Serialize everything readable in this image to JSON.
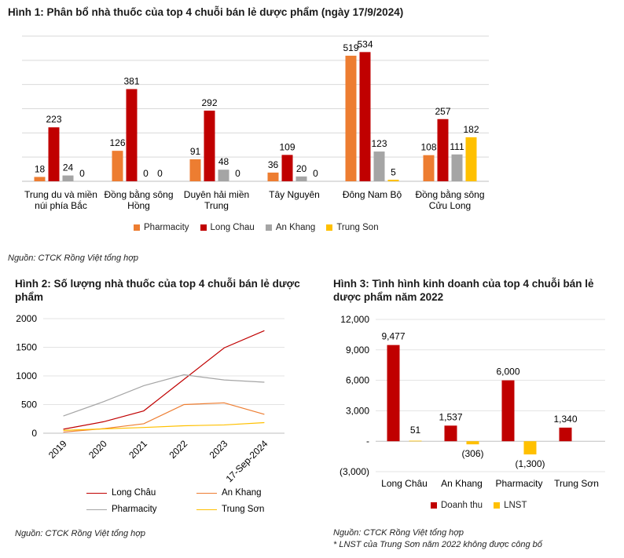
{
  "fig1": {
    "title": "Hình 1: Phân bổ nhà thuốc của top 4 chuỗi bán lẻ dược phẩm (ngày 17/9/2024)",
    "source": "Nguồn: CTCK Rồng Việt tổng hợp"
  },
  "fig2": {
    "title_line1": "Hình 2: Số lượng nhà thuốc của top 4 chuỗi bán lẻ dược",
    "title_line2": "phẩm",
    "source": "Nguồn: CTCK Rồng Việt tổng hợp"
  },
  "fig3": {
    "title_line1": "Hình 3: Tình hình kinh doanh của top 4 chuỗi bán lẻ",
    "title_line2": "dược phẩm năm 2022",
    "source": "Nguồn: CTCK Rồng Việt tổng hợp",
    "note": "* LNST của Trung Sơn năm 2022 không được công bố"
  },
  "chart_data": [
    {
      "type": "bar",
      "title": "Hình 1: Phân bổ nhà thuốc của top 4 chuỗi bán lẻ dược phẩm (ngày 17/9/2024)",
      "categories": [
        [
          "Trung du và miền",
          "núi phía Bắc"
        ],
        [
          "Đồng bằng sông",
          "Hồng"
        ],
        [
          "Duyên hải miền",
          "Trung"
        ],
        [
          "Tây Nguyên"
        ],
        [
          "Đông Nam Bộ"
        ],
        [
          "Đồng bằng sông",
          "Cửu Long"
        ]
      ],
      "series": [
        {
          "name": "Pharmacity",
          "color": "#ED7D31",
          "values": [
            18,
            126,
            91,
            36,
            519,
            108
          ]
        },
        {
          "name": "Long Chau",
          "color": "#C00000",
          "values": [
            223,
            381,
            292,
            109,
            534,
            257
          ]
        },
        {
          "name": "An Khang",
          "color": "#A5A5A5",
          "values": [
            24,
            0,
            48,
            20,
            123,
            111
          ]
        },
        {
          "name": "Trung Son",
          "color": "#FFC000",
          "values": [
            0,
            0,
            0,
            0,
            5,
            182
          ]
        }
      ],
      "labels": [
        [
          "18",
          "126",
          "91",
          "36",
          "519",
          "108"
        ],
        [
          "223",
          "381",
          "292",
          "109",
          "534",
          "257"
        ],
        [
          "24",
          "0",
          "48",
          "20",
          "123",
          "111"
        ],
        [
          "0",
          "0",
          "0",
          "0",
          "5",
          "182"
        ]
      ],
      "ylim": [
        0,
        600
      ],
      "grid": true,
      "legend": "bottom"
    },
    {
      "type": "line",
      "title": "Hình 2: Số lượng nhà thuốc của top 4 chuỗi bán lẻ dược phẩm",
      "x": [
        "2019",
        "2020",
        "2021",
        "2022",
        "2023",
        "17-Sep-2024"
      ],
      "series": [
        {
          "name": "Long Châu",
          "color": "#C00000",
          "values": [
            70,
            200,
            390,
            940,
            1490,
            1790
          ]
        },
        {
          "name": "An Khang",
          "color": "#ED7D31",
          "values": [
            20,
            80,
            165,
            500,
            530,
            330
          ]
        },
        {
          "name": "Pharmacity",
          "color": "#A5A5A5",
          "values": [
            300,
            550,
            830,
            1020,
            930,
            890
          ]
        },
        {
          "name": "Trung Sơn",
          "color": "#FFC000",
          "values": [
            50,
            75,
            100,
            130,
            145,
            185
          ]
        }
      ],
      "yticks": [
        "0",
        "500",
        "1000",
        "1500",
        "2000"
      ],
      "ylim": [
        0,
        2000
      ],
      "grid": true,
      "legend": "bottom"
    },
    {
      "type": "bar",
      "title": "Hình 3: Tình hình kinh doanh của top 4 chuỗi bán lẻ dược phẩm năm 2022",
      "categories": [
        "Long Châu",
        "An Khang",
        "Pharmacity",
        "Trung Sơn"
      ],
      "series": [
        {
          "name": "Doanh thu",
          "color": "#C00000",
          "values": [
            9477,
            1537,
            6000,
            1340
          ]
        },
        {
          "name": "LNST",
          "color": "#FFC000",
          "values": [
            51,
            -306,
            -1300,
            null
          ]
        }
      ],
      "labels": [
        [
          "9,477",
          "1,537",
          "6,000",
          "1,340"
        ],
        [
          "51",
          "(306)",
          "(1,300)",
          ""
        ]
      ],
      "yticks": [
        "(3,000)",
        "-",
        "3,000",
        "6,000",
        "9,000",
        "12,000"
      ],
      "ylim": [
        -3000,
        12000
      ],
      "grid": true,
      "legend": "bottom"
    }
  ]
}
